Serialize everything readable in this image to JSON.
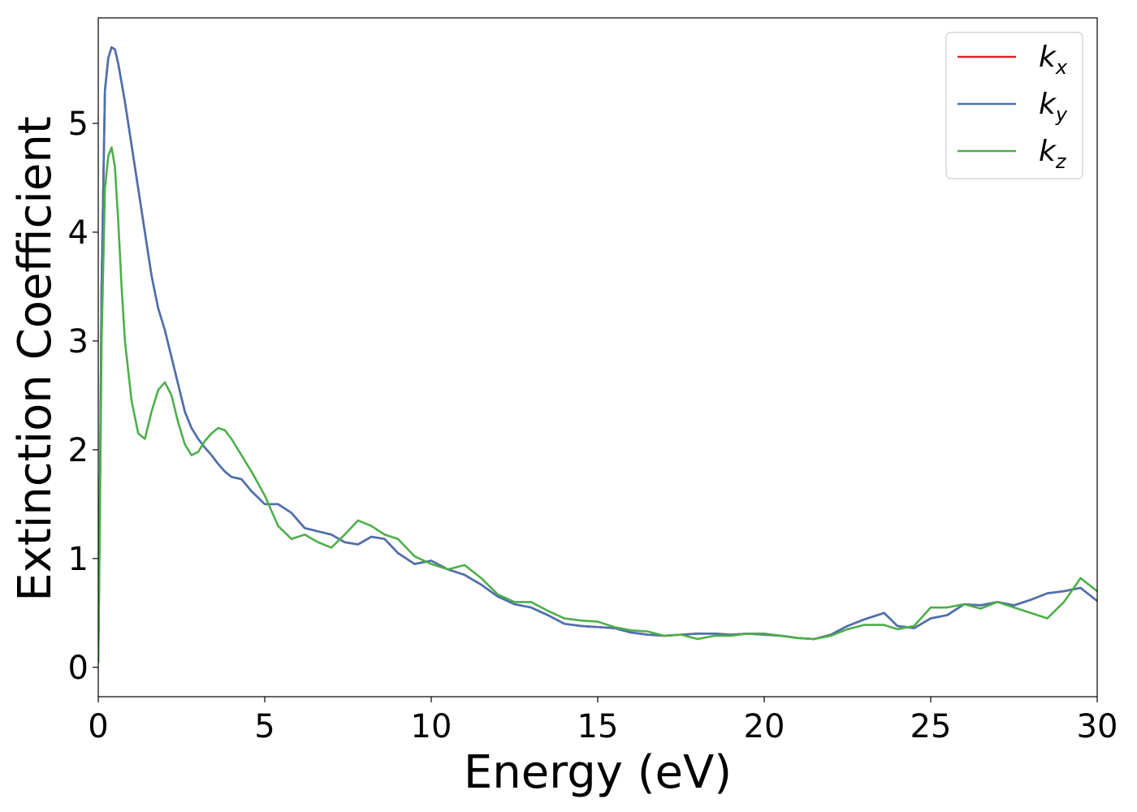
{
  "chart_data": {
    "type": "line",
    "xlabel": "Energy (eV)",
    "ylabel": "Extinction Coefficient",
    "xlim": [
      0,
      30
    ],
    "ylim": [
      -0.27,
      5.97
    ],
    "xticks": [
      0,
      5,
      10,
      15,
      20,
      25,
      30
    ],
    "yticks": [
      0,
      1,
      2,
      3,
      4,
      5
    ],
    "grid": false,
    "legend_position": "top-right",
    "series": [
      {
        "name": "k_x",
        "label_main": "k",
        "label_sub": "x",
        "color": "#d62728",
        "x": [
          0,
          0.05,
          0.1,
          0.2,
          0.3,
          0.4,
          0.5,
          0.6,
          0.8,
          1.0,
          1.2,
          1.4,
          1.6,
          1.8,
          2.0,
          2.2,
          2.4,
          2.6,
          2.8,
          3.0,
          3.2,
          3.4,
          3.6,
          3.8,
          4.0,
          4.3,
          4.6,
          5.0,
          5.4,
          5.8,
          6.2,
          6.6,
          7.0,
          7.4,
          7.8,
          8.2,
          8.6,
          9.0,
          9.5,
          10.0,
          10.5,
          11.0,
          11.5,
          12.0,
          12.5,
          13.0,
          13.5,
          14.0,
          14.5,
          15.0,
          15.5,
          16.0,
          16.5,
          17.0,
          17.5,
          18.0,
          18.5,
          19.0,
          19.5,
          20.0,
          20.5,
          21.0,
          21.5,
          22.0,
          22.5,
          23.0,
          23.6,
          24.0,
          24.5,
          25.0,
          25.5,
          26.0,
          26.5,
          27.0,
          27.5,
          28.0,
          28.5,
          29.0,
          29.5,
          30.0
        ],
        "y": [
          0.05,
          1.6,
          3.5,
          5.3,
          5.6,
          5.7,
          5.68,
          5.55,
          5.2,
          4.8,
          4.4,
          4.0,
          3.6,
          3.3,
          3.1,
          2.85,
          2.6,
          2.35,
          2.2,
          2.1,
          2.02,
          1.95,
          1.87,
          1.8,
          1.75,
          1.73,
          1.62,
          1.5,
          1.5,
          1.42,
          1.28,
          1.25,
          1.22,
          1.15,
          1.13,
          1.2,
          1.18,
          1.05,
          0.95,
          0.98,
          0.9,
          0.85,
          0.76,
          0.65,
          0.58,
          0.55,
          0.48,
          0.4,
          0.38,
          0.37,
          0.36,
          0.32,
          0.3,
          0.29,
          0.3,
          0.31,
          0.31,
          0.3,
          0.31,
          0.3,
          0.29,
          0.27,
          0.26,
          0.3,
          0.38,
          0.44,
          0.5,
          0.38,
          0.36,
          0.45,
          0.48,
          0.58,
          0.57,
          0.6,
          0.57,
          0.62,
          0.68,
          0.7,
          0.73,
          0.61
        ]
      },
      {
        "name": "k_y",
        "label_main": "k",
        "label_sub": "y",
        "color": "#4a72b0",
        "x": [
          0,
          0.05,
          0.1,
          0.2,
          0.3,
          0.4,
          0.5,
          0.6,
          0.8,
          1.0,
          1.2,
          1.4,
          1.6,
          1.8,
          2.0,
          2.2,
          2.4,
          2.6,
          2.8,
          3.0,
          3.2,
          3.4,
          3.6,
          3.8,
          4.0,
          4.3,
          4.6,
          5.0,
          5.4,
          5.8,
          6.2,
          6.6,
          7.0,
          7.4,
          7.8,
          8.2,
          8.6,
          9.0,
          9.5,
          10.0,
          10.5,
          11.0,
          11.5,
          12.0,
          12.5,
          13.0,
          13.5,
          14.0,
          14.5,
          15.0,
          15.5,
          16.0,
          16.5,
          17.0,
          17.5,
          18.0,
          18.5,
          19.0,
          19.5,
          20.0,
          20.5,
          21.0,
          21.5,
          22.0,
          22.5,
          23.0,
          23.6,
          24.0,
          24.5,
          25.0,
          25.5,
          26.0,
          26.5,
          27.0,
          27.5,
          28.0,
          28.5,
          29.0,
          29.5,
          30.0
        ],
        "y": [
          0.05,
          1.6,
          3.5,
          5.3,
          5.6,
          5.7,
          5.68,
          5.55,
          5.2,
          4.8,
          4.4,
          4.0,
          3.6,
          3.3,
          3.1,
          2.85,
          2.6,
          2.35,
          2.2,
          2.1,
          2.02,
          1.95,
          1.87,
          1.8,
          1.75,
          1.73,
          1.62,
          1.5,
          1.5,
          1.42,
          1.28,
          1.25,
          1.22,
          1.15,
          1.13,
          1.2,
          1.18,
          1.05,
          0.95,
          0.98,
          0.9,
          0.85,
          0.76,
          0.65,
          0.58,
          0.55,
          0.48,
          0.4,
          0.38,
          0.37,
          0.36,
          0.32,
          0.3,
          0.29,
          0.3,
          0.31,
          0.31,
          0.3,
          0.31,
          0.3,
          0.29,
          0.27,
          0.26,
          0.3,
          0.38,
          0.44,
          0.5,
          0.38,
          0.36,
          0.45,
          0.48,
          0.58,
          0.57,
          0.6,
          0.57,
          0.62,
          0.68,
          0.7,
          0.73,
          0.61
        ]
      },
      {
        "name": "k_z",
        "label_main": "k",
        "label_sub": "z",
        "color": "#4daf4a",
        "x": [
          0,
          0.05,
          0.1,
          0.2,
          0.3,
          0.4,
          0.5,
          0.6,
          0.7,
          0.8,
          1.0,
          1.2,
          1.4,
          1.6,
          1.8,
          2.0,
          2.2,
          2.4,
          2.6,
          2.8,
          3.0,
          3.2,
          3.4,
          3.6,
          3.8,
          4.0,
          4.3,
          4.6,
          5.0,
          5.4,
          5.8,
          6.2,
          6.6,
          7.0,
          7.4,
          7.8,
          8.2,
          8.6,
          9.0,
          9.5,
          10.0,
          10.5,
          11.0,
          11.5,
          12.0,
          12.5,
          13.0,
          13.5,
          14.0,
          14.5,
          15.0,
          15.5,
          16.0,
          16.5,
          17.0,
          17.5,
          18.0,
          18.5,
          19.0,
          19.5,
          20.0,
          20.5,
          21.0,
          21.5,
          22.0,
          22.5,
          23.0,
          23.6,
          24.0,
          24.5,
          25.0,
          25.5,
          26.0,
          26.5,
          27.0,
          27.5,
          28.0,
          28.5,
          29.0,
          29.5,
          30.0
        ],
        "y": [
          0.05,
          1.4,
          3.0,
          4.4,
          4.7,
          4.78,
          4.6,
          4.1,
          3.5,
          3.0,
          2.45,
          2.15,
          2.1,
          2.35,
          2.55,
          2.62,
          2.5,
          2.25,
          2.05,
          1.95,
          1.98,
          2.08,
          2.15,
          2.2,
          2.18,
          2.1,
          1.95,
          1.8,
          1.58,
          1.3,
          1.18,
          1.22,
          1.15,
          1.1,
          1.22,
          1.35,
          1.3,
          1.22,
          1.18,
          1.02,
          0.95,
          0.9,
          0.94,
          0.82,
          0.67,
          0.6,
          0.6,
          0.52,
          0.45,
          0.43,
          0.42,
          0.37,
          0.34,
          0.33,
          0.29,
          0.3,
          0.26,
          0.29,
          0.29,
          0.31,
          0.31,
          0.29,
          0.27,
          0.26,
          0.29,
          0.35,
          0.39,
          0.39,
          0.35,
          0.38,
          0.55,
          0.55,
          0.58,
          0.54,
          0.6,
          0.55,
          0.5,
          0.45,
          0.6,
          0.82,
          0.7
        ]
      }
    ]
  }
}
